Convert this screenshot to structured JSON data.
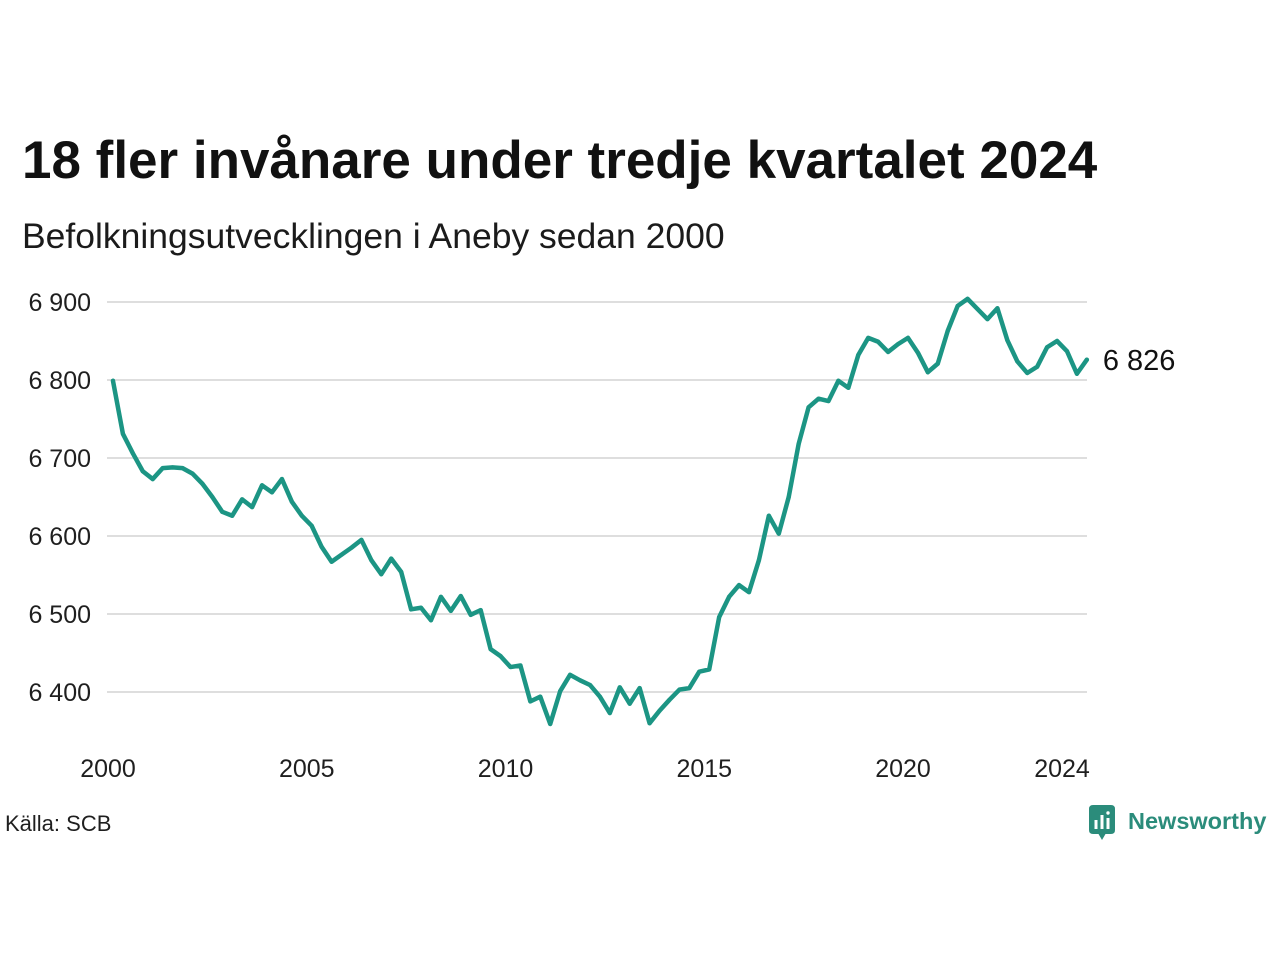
{
  "chart_data": {
    "type": "line",
    "title": "18 fler invånare under tredje kvartalet 2024",
    "subtitle": "Befolkningsutvecklingen i Aneby sedan 2000",
    "source": "Källa: SCB",
    "x": [
      "2000-Q1",
      "2000-Q2",
      "2000-Q3",
      "2000-Q4",
      "2001-Q1",
      "2001-Q2",
      "2001-Q3",
      "2001-Q4",
      "2002-Q1",
      "2002-Q2",
      "2002-Q3",
      "2002-Q4",
      "2003-Q1",
      "2003-Q2",
      "2003-Q3",
      "2003-Q4",
      "2004-Q1",
      "2004-Q2",
      "2004-Q3",
      "2004-Q4",
      "2005-Q1",
      "2005-Q2",
      "2005-Q3",
      "2005-Q4",
      "2006-Q1",
      "2006-Q2",
      "2006-Q3",
      "2006-Q4",
      "2007-Q1",
      "2007-Q2",
      "2007-Q3",
      "2007-Q4",
      "2008-Q1",
      "2008-Q2",
      "2008-Q3",
      "2008-Q4",
      "2009-Q1",
      "2009-Q2",
      "2009-Q3",
      "2009-Q4",
      "2010-Q1",
      "2010-Q2",
      "2010-Q3",
      "2010-Q4",
      "2011-Q1",
      "2011-Q2",
      "2011-Q3",
      "2011-Q4",
      "2012-Q1",
      "2012-Q2",
      "2012-Q3",
      "2012-Q4",
      "2013-Q1",
      "2013-Q2",
      "2013-Q3",
      "2013-Q4",
      "2014-Q1",
      "2014-Q2",
      "2014-Q3",
      "2014-Q4",
      "2015-Q1",
      "2015-Q2",
      "2015-Q3",
      "2015-Q4",
      "2016-Q1",
      "2016-Q2",
      "2016-Q3",
      "2016-Q4",
      "2017-Q1",
      "2017-Q2",
      "2017-Q3",
      "2017-Q4",
      "2018-Q1",
      "2018-Q2",
      "2018-Q3",
      "2018-Q4",
      "2019-Q1",
      "2019-Q2",
      "2019-Q3",
      "2019-Q4",
      "2020-Q1",
      "2020-Q2",
      "2020-Q3",
      "2020-Q4",
      "2021-Q1",
      "2021-Q2",
      "2021-Q3",
      "2021-Q4",
      "2022-Q1",
      "2022-Q2",
      "2022-Q3",
      "2022-Q4",
      "2023-Q1",
      "2023-Q2",
      "2023-Q3",
      "2023-Q4",
      "2024-Q1",
      "2024-Q2",
      "2024-Q3"
    ],
    "series": [
      {
        "color": "#1c9584",
        "values": [
          6799,
          6731,
          6706,
          6683,
          6673,
          6687,
          6688,
          6687,
          6680,
          6667,
          6650,
          6631,
          6626,
          6647,
          6637,
          6665,
          6656,
          6673,
          6644,
          6626,
          6613,
          6586,
          6567,
          6576,
          6585,
          6595,
          6569,
          6551,
          6571,
          6554,
          6506,
          6508,
          6492,
          6522,
          6504,
          6523,
          6499,
          6505,
          6455,
          6446,
          6432,
          6434,
          6388,
          6394,
          6359,
          6401,
          6422,
          6415,
          6409,
          6394,
          6373,
          6406,
          6385,
          6405,
          6360,
          6376,
          6390,
          6403,
          6405,
          6426,
          6429,
          6496,
          6522,
          6537,
          6528,
          6569,
          6626,
          6603,
          6650,
          6718,
          6765,
          6776,
          6773,
          6799,
          6790,
          6832,
          6854,
          6849,
          6836,
          6846,
          6854,
          6835,
          6810,
          6821,
          6863,
          6895,
          6904,
          6891,
          6878,
          6892,
          6851,
          6824,
          6809,
          6817,
          6842,
          6850,
          6837,
          6808,
          6826
        ]
      }
    ],
    "x_ticks": [
      "2000",
      "2005",
      "2010",
      "2015",
      "2020",
      "2024"
    ],
    "y_ticks": [
      {
        "value": 6900,
        "label": "6 900"
      },
      {
        "value": 6800,
        "label": "6 800"
      },
      {
        "value": 6700,
        "label": "6 700"
      },
      {
        "value": 6600,
        "label": "6 600"
      },
      {
        "value": 6500,
        "label": "6 500"
      },
      {
        "value": 6400,
        "label": "6 400"
      }
    ],
    "ylim": [
      6340,
      6920
    ],
    "grid": true,
    "data_labels": [
      {
        "x": "2024-Q3",
        "text": "6 826"
      }
    ]
  },
  "brand": {
    "name": "Newsworthy",
    "icon": "newsworthy-logo-icon",
    "color": "#2b8c7b"
  }
}
